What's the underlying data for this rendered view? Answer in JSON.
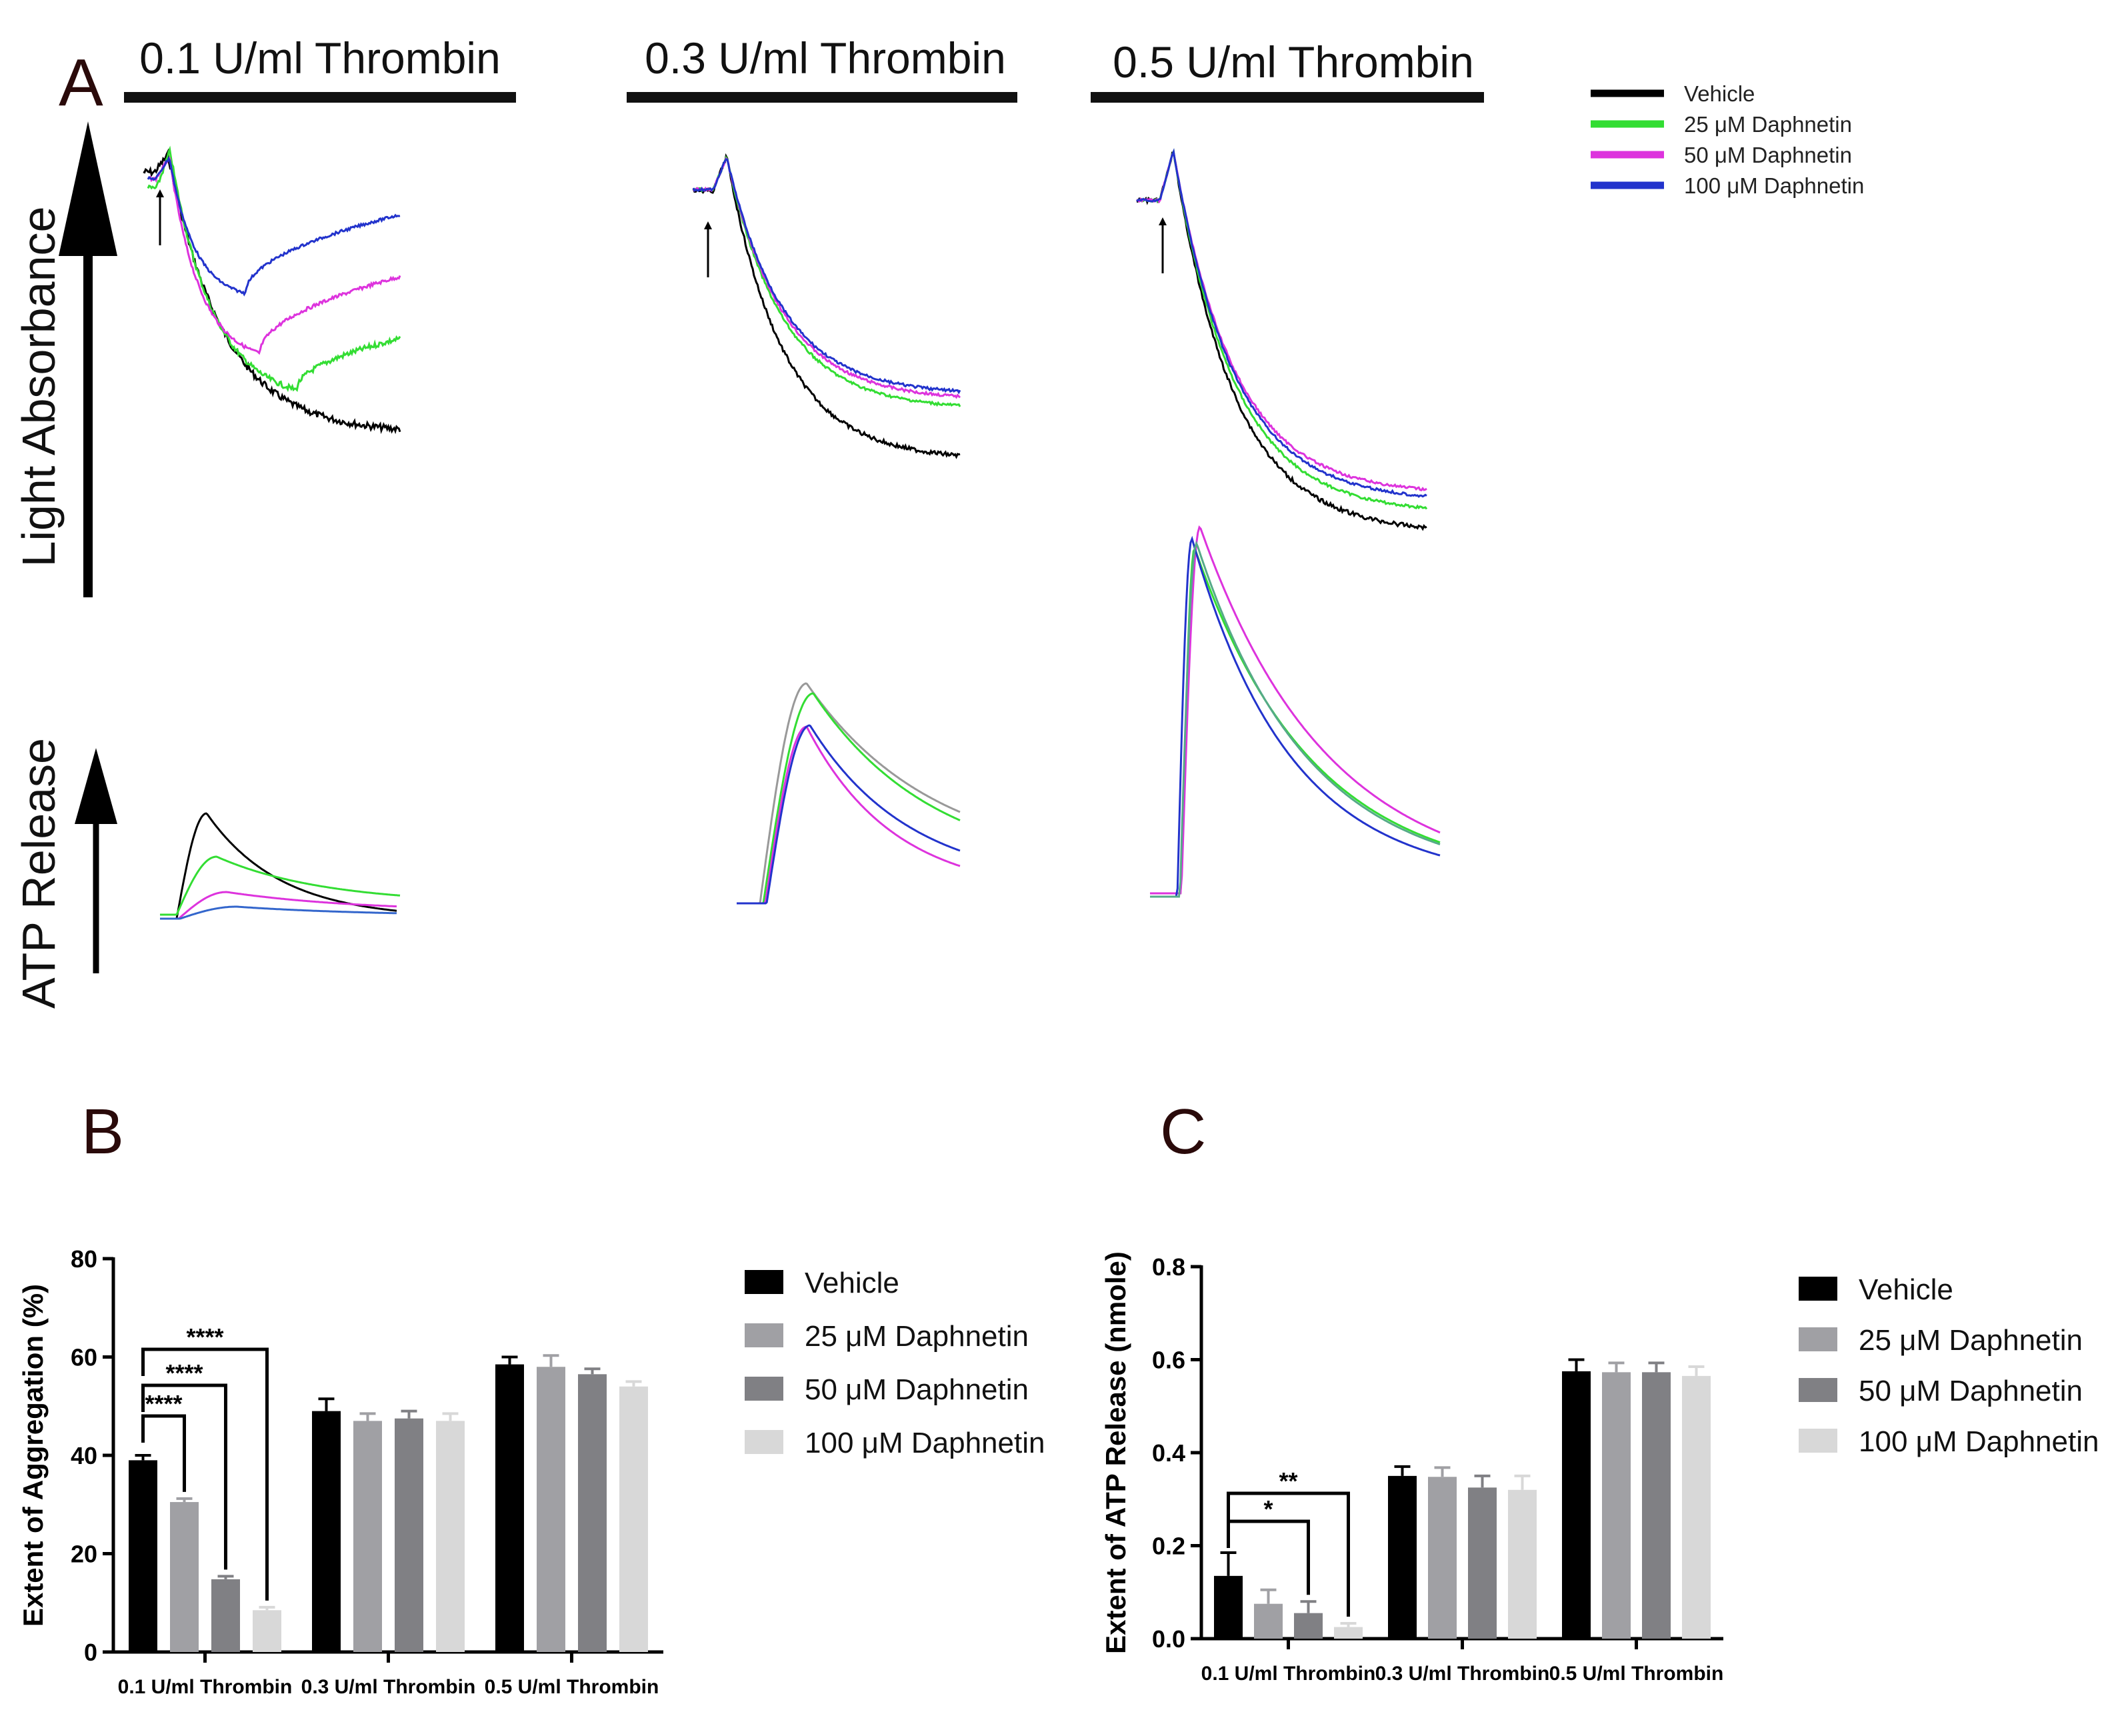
{
  "panel_letters": {
    "a": "A",
    "b": "B",
    "c": "C"
  },
  "panel_a": {
    "conditions": [
      "0.1 U/ml Thrombin",
      "0.3 U/ml Thrombin",
      "0.5 U/ml Thrombin"
    ],
    "y_label_top": "Light Absorbance",
    "y_label_bottom": "ATP Release",
    "legend": [
      {
        "name": "Vehicle",
        "color": "#000000"
      },
      {
        "name": "25 μM Daphnetin",
        "color": "#33dd33"
      },
      {
        "name": "50 μM Daphnetin",
        "color": "#dd33dd"
      },
      {
        "name": "100 μM Daphnetin",
        "color": "#2233cc"
      }
    ]
  },
  "chart_data": [
    {
      "type": "bar",
      "panel": "B",
      "ylabel": "Extent of Aggregation (%)",
      "ylim": [
        0,
        80
      ],
      "yticks": [
        "0",
        "20",
        "40",
        "60",
        "80"
      ],
      "categories": [
        "0.1 U/ml Thrombin",
        "0.3 U/ml Thrombin",
        "0.5 U/ml Thrombin"
      ],
      "series": [
        {
          "name": "Vehicle",
          "color": "#000000",
          "values": [
            39,
            49,
            58.5
          ],
          "errors": [
            1,
            2.5,
            1.5
          ]
        },
        {
          "name": "25 μM Daphnetin",
          "color": "#a0a0a4",
          "values": [
            30.5,
            47,
            58
          ],
          "errors": [
            0.7,
            1.5,
            2.3
          ]
        },
        {
          "name": "50 μM Daphnetin",
          "color": "#808084",
          "values": [
            14.8,
            47.5,
            56.5
          ],
          "errors": [
            0.6,
            1.5,
            1.1
          ]
        },
        {
          "name": "100 μM Daphnetin",
          "color": "#d8d8d8",
          "values": [
            8.5,
            47,
            54
          ],
          "errors": [
            0.6,
            1.5,
            1
          ]
        }
      ],
      "significance": [
        {
          "label": "****",
          "from": 0,
          "to": 1
        },
        {
          "label": "****",
          "from": 0,
          "to": 2
        },
        {
          "label": "****",
          "from": 0,
          "to": 3
        }
      ]
    },
    {
      "type": "bar",
      "panel": "C",
      "ylabel": "Extent of ATP Release (nmole)",
      "ylim": [
        0,
        0.8
      ],
      "yticks": [
        "0.0",
        "0.2",
        "0.4",
        "0.6",
        "0.8"
      ],
      "categories": [
        "0.1 U/ml Thrombin",
        "0.3 U/ml Thrombin",
        "0.5 U/ml Thrombin"
      ],
      "series": [
        {
          "name": "Vehicle",
          "color": "#000000",
          "values": [
            0.135,
            0.35,
            0.575
          ],
          "errors": [
            0.05,
            0.02,
            0.025
          ]
        },
        {
          "name": "25 μM Daphnetin",
          "color": "#a0a0a4",
          "values": [
            0.075,
            0.348,
            0.573
          ],
          "errors": [
            0.03,
            0.02,
            0.02
          ]
        },
        {
          "name": "50 μM Daphnetin",
          "color": "#808084",
          "values": [
            0.055,
            0.325,
            0.573
          ],
          "errors": [
            0.025,
            0.025,
            0.02
          ]
        },
        {
          "name": "100 μM Daphnetin",
          "color": "#d8d8d8",
          "values": [
            0.025,
            0.32,
            0.565
          ],
          "errors": [
            0.008,
            0.03,
            0.02
          ]
        }
      ],
      "significance": [
        {
          "label": "*",
          "from": 0,
          "to": 2
        },
        {
          "label": "**",
          "from": 0,
          "to": 3
        }
      ]
    }
  ]
}
